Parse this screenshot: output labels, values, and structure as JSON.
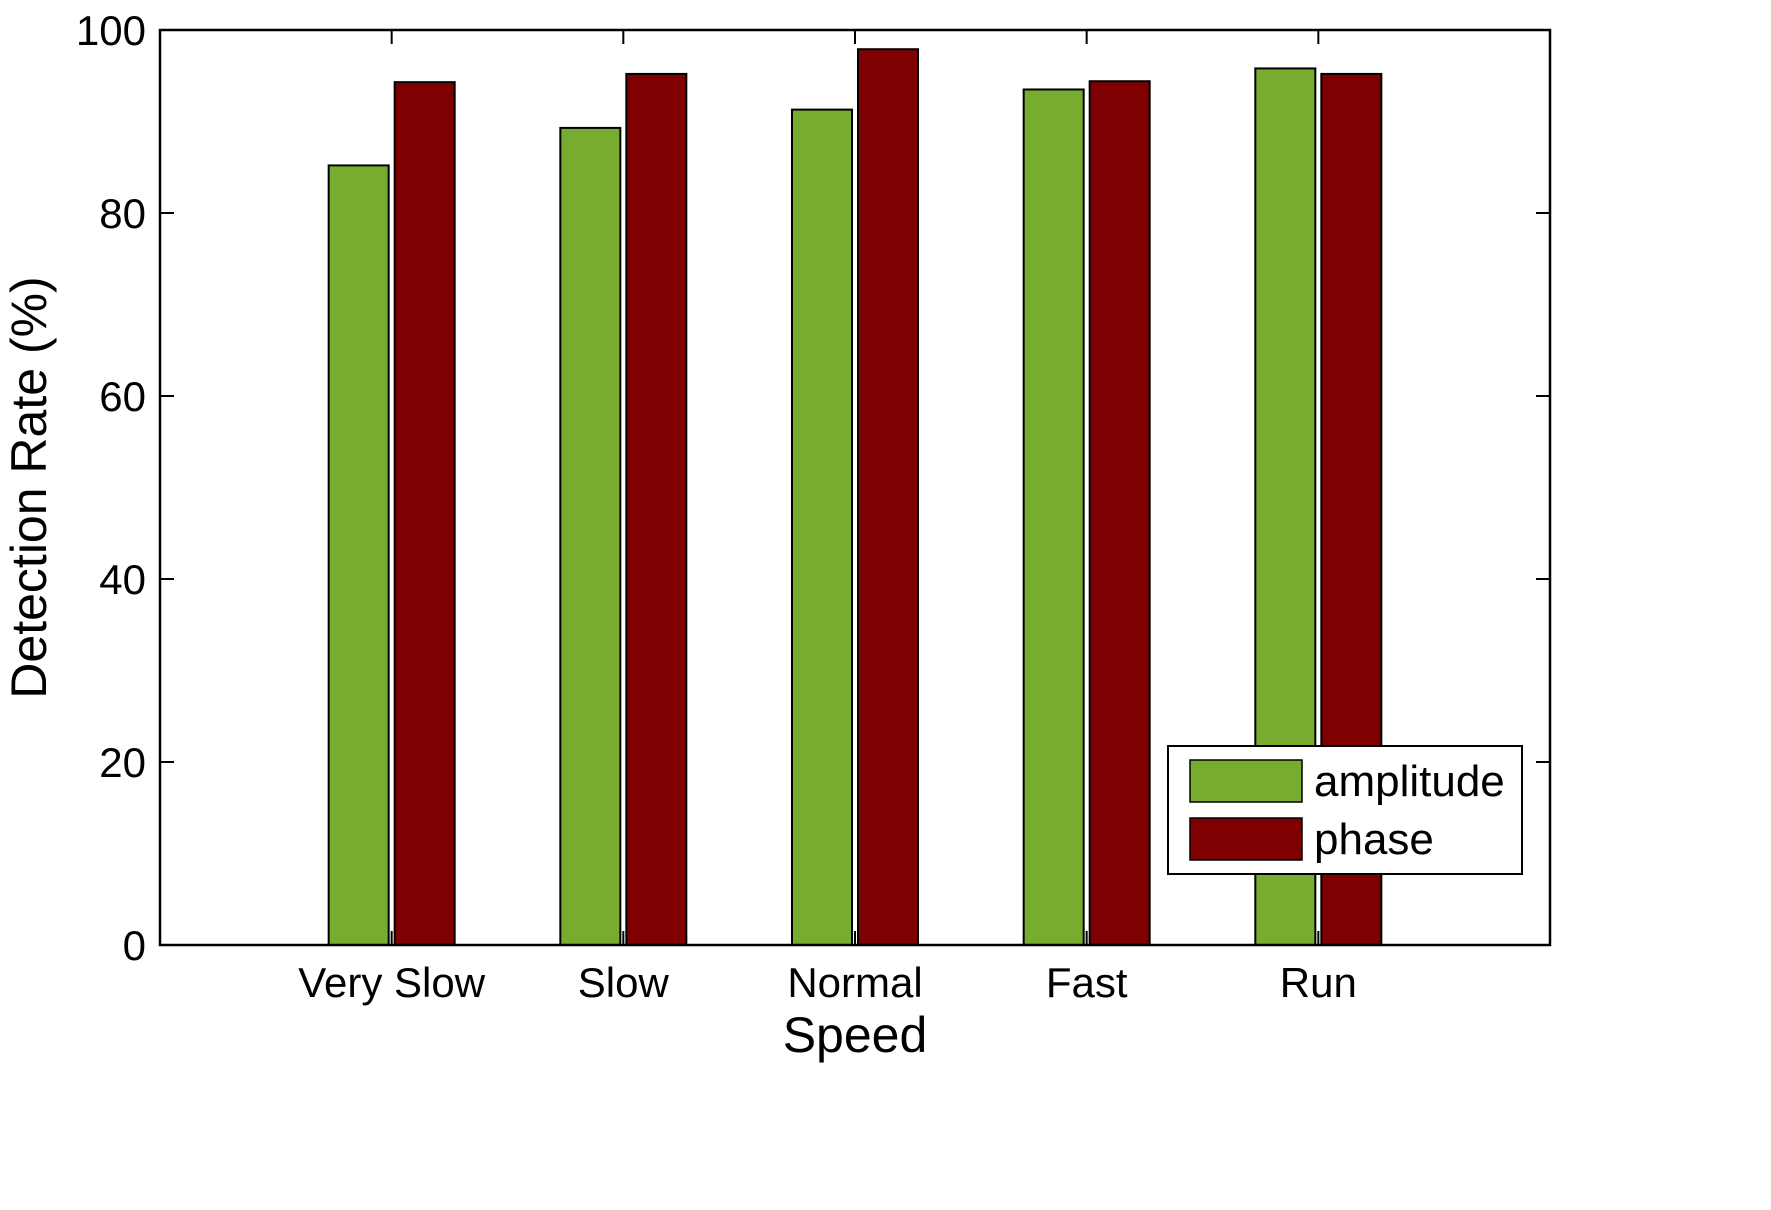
{
  "chart_data": {
    "type": "bar",
    "title": "",
    "xlabel": "Speed",
    "ylabel": "Detection Rate (%)",
    "categories": [
      "Very Slow",
      "Slow",
      "Normal",
      "Fast",
      "Run"
    ],
    "series": [
      {
        "name": "amplitude",
        "values": [
          85.2,
          89.3,
          91.3,
          93.5,
          95.8
        ],
        "color": "#77ac30"
      },
      {
        "name": "phase",
        "values": [
          94.3,
          95.2,
          97.9,
          94.4,
          95.2
        ],
        "color": "#7e0000"
      }
    ],
    "ylim": [
      0,
      100
    ],
    "yticks": [
      0,
      20,
      40,
      60,
      80,
      100
    ],
    "xlim": [
      0,
      6
    ],
    "grid": false,
    "legend_position": "bottom-right"
  }
}
